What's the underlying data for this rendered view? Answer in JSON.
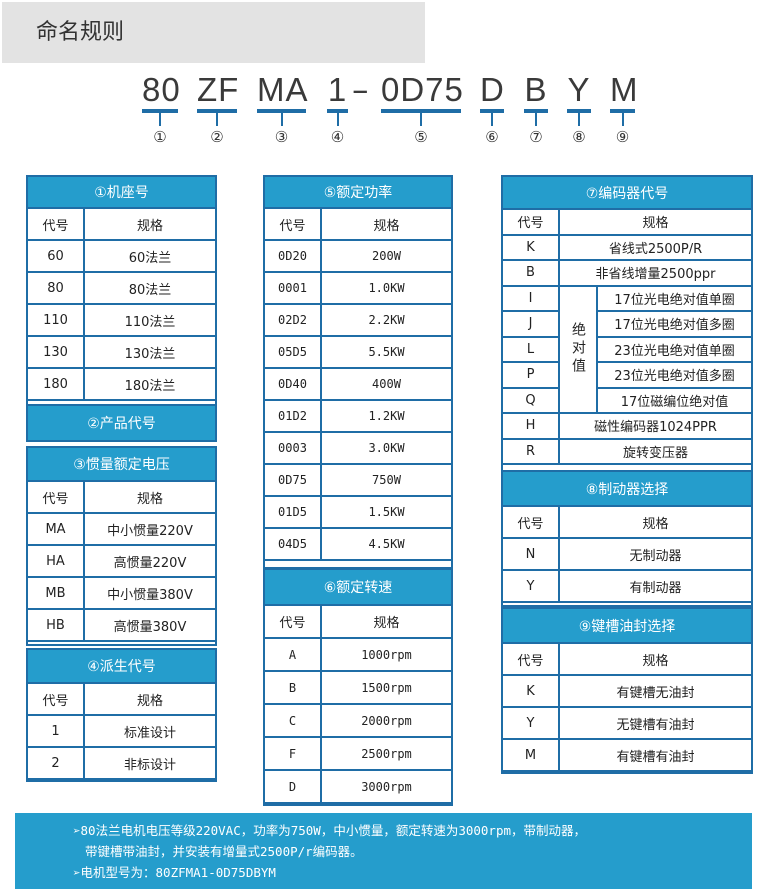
{
  "title": "命名规则",
  "model_code": {
    "segments": [
      {
        "code": "80",
        "num": "①"
      },
      {
        "code": "ZF",
        "num": "②"
      },
      {
        "code": "MA",
        "num": "③"
      },
      {
        "code": "1",
        "num": "④"
      },
      {
        "code": "0D75",
        "num": "⑤"
      },
      {
        "code": "D",
        "num": "⑥"
      },
      {
        "code": "B",
        "num": "⑦"
      },
      {
        "code": "Y",
        "num": "⑧"
      },
      {
        "code": "M",
        "num": "⑨"
      }
    ],
    "dash": "–"
  },
  "col_header": {
    "code": "代号",
    "spec": "规格"
  },
  "sections": {
    "s1": {
      "title": "①机座号",
      "rows": [
        [
          "60",
          "60法兰"
        ],
        [
          "80",
          "80法兰"
        ],
        [
          "110",
          "110法兰"
        ],
        [
          "130",
          "130法兰"
        ],
        [
          "180",
          "180法兰"
        ]
      ]
    },
    "s2": {
      "title": "②产品代号"
    },
    "s3": {
      "title": "③惯量额定电压",
      "rows": [
        [
          "MA",
          "中小惯量220V"
        ],
        [
          "HA",
          "高惯量220V"
        ],
        [
          "MB",
          "中小惯量380V"
        ],
        [
          "HB",
          "高惯量380V"
        ]
      ]
    },
    "s4": {
      "title": "④派生代号",
      "rows": [
        [
          "1",
          "标准设计"
        ],
        [
          "2",
          "非标设计"
        ]
      ]
    },
    "s5": {
      "title": "⑤额定功率",
      "rows": [
        [
          "0D20",
          "200W"
        ],
        [
          "0001",
          "1.0KW"
        ],
        [
          "02D2",
          "2.2KW"
        ],
        [
          "05D5",
          "5.5KW"
        ],
        [
          "0D40",
          "400W"
        ],
        [
          "01D2",
          "1.2KW"
        ],
        [
          "0003",
          "3.0KW"
        ],
        [
          "0D75",
          "750W"
        ],
        [
          "01D5",
          "1.5KW"
        ],
        [
          "04D5",
          "4.5KW"
        ]
      ]
    },
    "s6": {
      "title": "⑥额定转速",
      "rows": [
        [
          "A",
          "1000rpm"
        ],
        [
          "B",
          "1500rpm"
        ],
        [
          "C",
          "2000rpm"
        ],
        [
          "F",
          "2500rpm"
        ],
        [
          "D",
          "3000rpm"
        ]
      ]
    },
    "s7": {
      "title": "⑦编码器代号",
      "rows_top": [
        [
          "K",
          "省线式2500P/R"
        ],
        [
          "B",
          "非省线增量2500ppr"
        ]
      ],
      "group_label": "绝对值",
      "rows_group": [
        [
          "I",
          "17位光电绝对值单圈"
        ],
        [
          "J",
          "17位光电绝对值多圈"
        ],
        [
          "L",
          "23位光电绝对值单圈"
        ],
        [
          "P",
          "23位光电绝对值多圈"
        ],
        [
          "Q",
          "17位磁编位绝对值"
        ]
      ],
      "rows_bottom": [
        [
          "H",
          "磁性编码器1024PPR"
        ],
        [
          "R",
          "旋转变压器"
        ]
      ]
    },
    "s8": {
      "title": "⑧制动器选择",
      "rows": [
        [
          "N",
          "无制动器"
        ],
        [
          "Y",
          "有制动器"
        ]
      ]
    },
    "s9": {
      "title": "⑨键槽油封选择",
      "rows": [
        [
          "K",
          "有键槽无油封"
        ],
        [
          "Y",
          "无键槽有油封"
        ],
        [
          "M",
          "有键槽有油封"
        ]
      ]
    }
  },
  "example": {
    "line1": "➢80法兰电机电压等级220VAC，功率为750W，中小惯量，额定转速为3000rpm，带制动器，",
    "line2": "带键槽带油封，并安装有增量式2500P/r编码器。",
    "line3": "➢电机型号为：80ZFMA1-0D75DBYM"
  },
  "colors": {
    "header_bg": "#259dcc",
    "border": "#1f6da6",
    "title_bg": "#e3e3e3"
  }
}
